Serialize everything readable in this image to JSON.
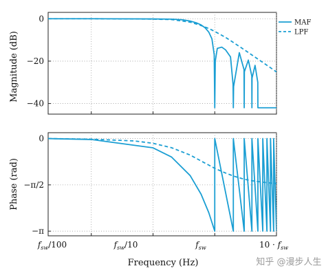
{
  "chart_data": [
    {
      "type": "line",
      "ylabel": "Magnitude (dB)",
      "xscale": "log",
      "xlim": [
        0.2,
        1000
      ],
      "ylim": [
        -45,
        3
      ],
      "yticks": [
        0,
        -20,
        -40
      ],
      "ytick_labels": [
        "0",
        "−20",
        "−40"
      ],
      "grid": "dotted",
      "legend": {
        "placement": "top-right (outside plot)",
        "entries": [
          {
            "name": "MAF",
            "style": "solid"
          },
          {
            "name": "LPF",
            "style": "dashed"
          }
        ]
      },
      "series": [
        {
          "name": "MAF",
          "style": "solid",
          "x": [
            0.2,
            1,
            10,
            20,
            30,
            40,
            50,
            60,
            70,
            80,
            90,
            98,
            100,
            102,
            110,
            130,
            150,
            180,
            198,
            200,
            202,
            250,
            298,
            300,
            302,
            350,
            398,
            400,
            402,
            450,
            498,
            500,
            600,
            700,
            800,
            900,
            1000
          ],
          "values": [
            0,
            0,
            -0.1,
            -0.2,
            -0.5,
            -1.1,
            -1.9,
            -2.9,
            -4.3,
            -6.3,
            -9.5,
            -17,
            -42,
            -20,
            -14,
            -13.4,
            -14.7,
            -18,
            -31,
            -42,
            -32,
            -16,
            -24,
            -42,
            -25,
            -19.5,
            -27,
            -42,
            -28,
            -22,
            -30,
            -42,
            -42,
            -42,
            -42,
            -42,
            -42
          ]
        },
        {
          "name": "LPF",
          "style": "dashed",
          "x": [
            0.2,
            1,
            5,
            10,
            20,
            40,
            60,
            80,
            100,
            150,
            200,
            300,
            400,
            600,
            800,
            1000
          ],
          "values": [
            0,
            0,
            -0.1,
            -0.2,
            -0.4,
            -1.6,
            -3.2,
            -4.6,
            -6.0,
            -8.8,
            -11.2,
            -14.6,
            -17.1,
            -20.6,
            -23.1,
            -25.1
          ]
        }
      ]
    },
    {
      "type": "line",
      "xlabel": "Frequency (Hz)",
      "ylabel": "Phase (rad)",
      "xscale": "log",
      "xlim": [
        0.2,
        1000
      ],
      "ylim": [
        -3.3,
        0.2
      ],
      "yticks": [
        0,
        -1.5708,
        -3.1416
      ],
      "ytick_labels": [
        "0",
        "−π/2",
        "−π"
      ],
      "xticks": [
        1,
        10,
        100,
        1000
      ],
      "xtick_labels": [
        "f_sw/100",
        "f_sw/10",
        "f_sw",
        "10 · f_sw"
      ],
      "grid": "dotted",
      "series": [
        {
          "name": "MAF",
          "style": "solid",
          "x": [
            0.2,
            1,
            10,
            20,
            40,
            60,
            80,
            100,
            100,
            200,
            200,
            300,
            300,
            400,
            400,
            500,
            500,
            600,
            600,
            700,
            700,
            800,
            800,
            900,
            900,
            1000
          ],
          "values": [
            0,
            -0.0314,
            -0.314,
            -0.628,
            -1.257,
            -1.885,
            -2.513,
            -3.142,
            0,
            -3.142,
            0,
            -3.142,
            0,
            -3.142,
            0,
            -3.142,
            0,
            -3.142,
            0,
            -3.142,
            0,
            -3.142,
            0,
            -3.142,
            0,
            -3.142
          ]
        },
        {
          "name": "LPF",
          "style": "dashed",
          "x": [
            0.2,
            1,
            5,
            10,
            20,
            40,
            60,
            80,
            100,
            150,
            200,
            300,
            400,
            600,
            800,
            1000
          ],
          "values": [
            0,
            -0.02,
            -0.08,
            -0.16,
            -0.31,
            -0.56,
            -0.76,
            -0.9,
            -1.01,
            -1.17,
            -1.27,
            -1.38,
            -1.43,
            -1.48,
            -1.51,
            -1.52
          ]
        }
      ]
    }
  ],
  "legend": {
    "maf_label": "MAF",
    "lpf_label": "LPF"
  },
  "watermark": {
    "text": "知乎 @漫步人生"
  },
  "colors": {
    "line": "#1a9ed3",
    "axis": "#222222",
    "grid": "#9a9a9a"
  }
}
